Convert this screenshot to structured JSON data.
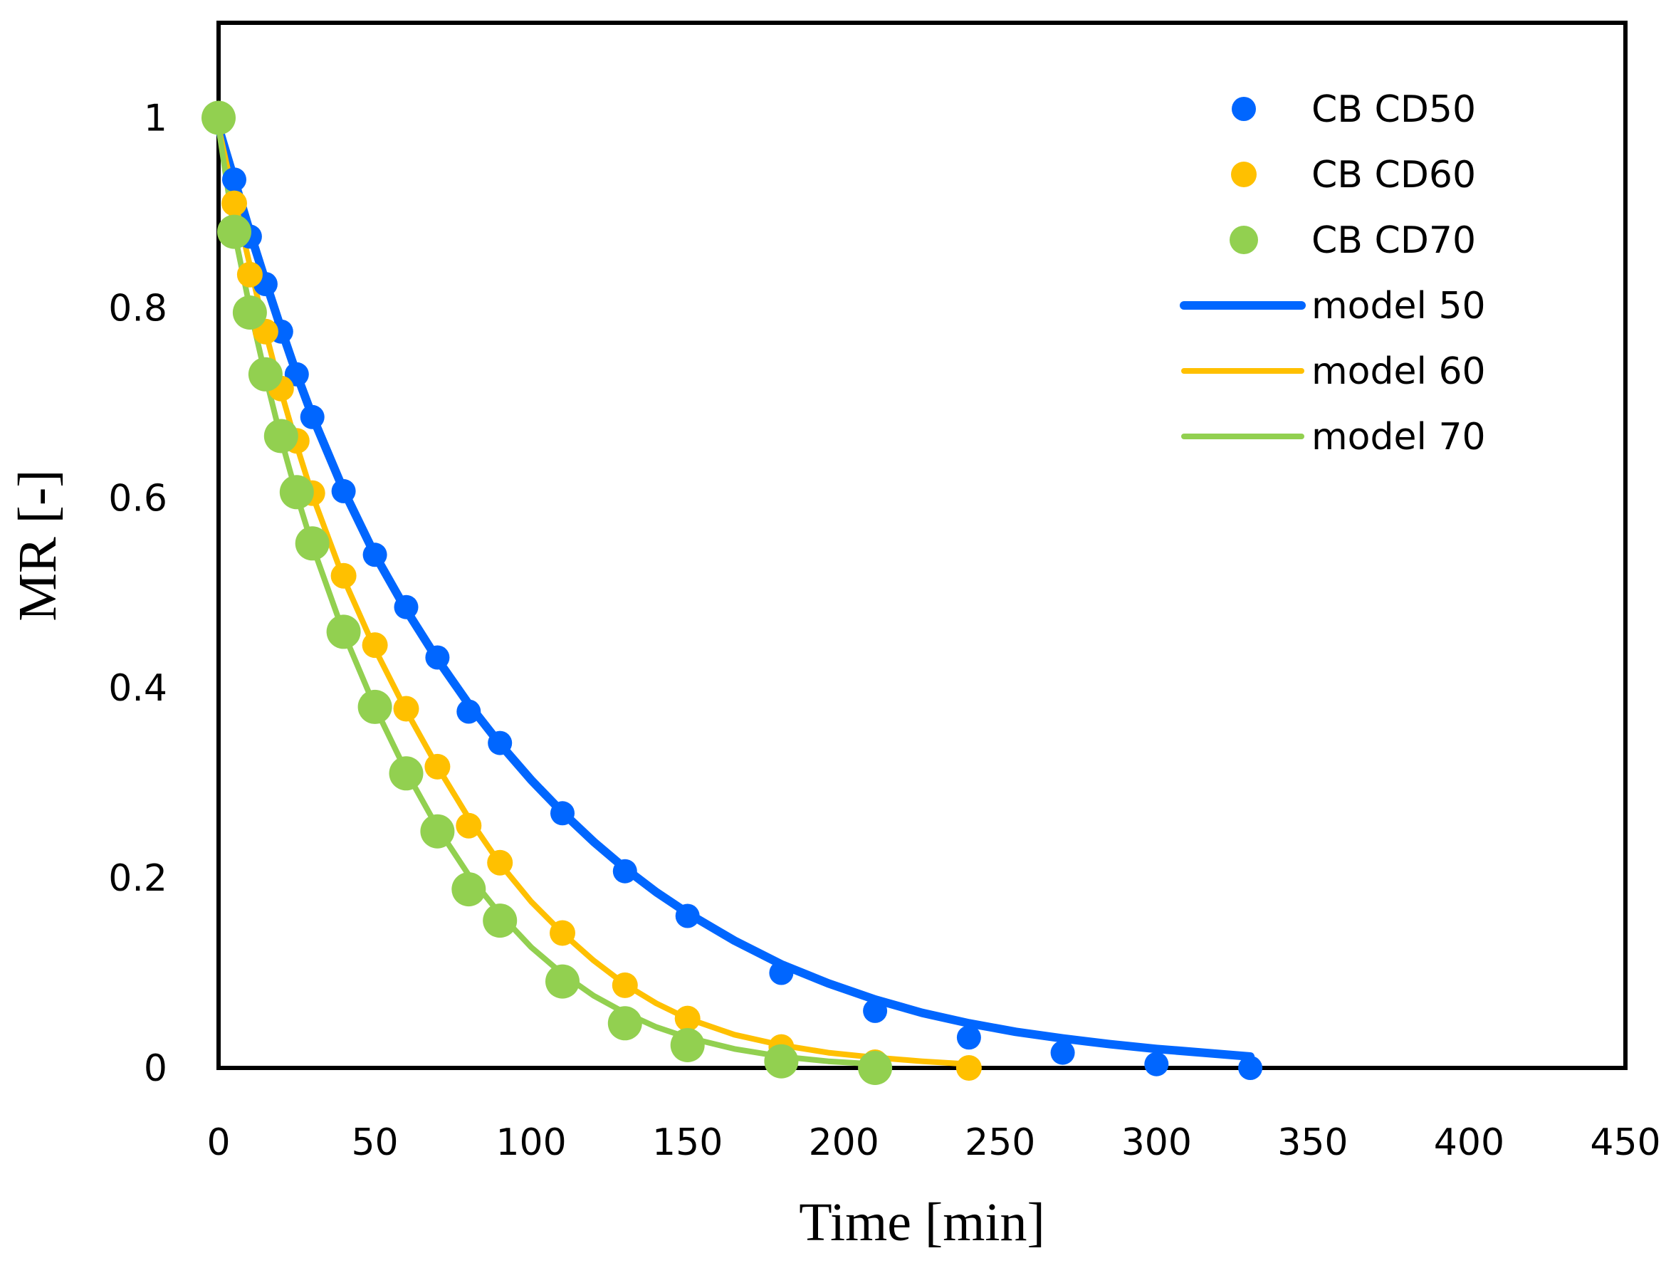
{
  "chart_data": {
    "type": "scatter",
    "title": "",
    "xlabel": "Time [min]",
    "ylabel": "MR [-]",
    "xlim": [
      0,
      450
    ],
    "ylim": [
      0,
      1.1
    ],
    "xticks": [
      0,
      50,
      100,
      150,
      200,
      250,
      300,
      350,
      400,
      450
    ],
    "yticks": [
      0,
      0.2,
      0.4,
      0.6,
      0.8,
      1
    ],
    "xtick_labels": [
      "0",
      "50",
      "100",
      "150",
      "200",
      "250",
      "300",
      "350",
      "400",
      "450"
    ],
    "ytick_labels": [
      "0",
      "0.2",
      "0.4",
      "0.6",
      "0.8",
      "1"
    ],
    "grid": false,
    "legend_position": "top-right",
    "series": [
      {
        "name": "CB CD50",
        "kind": "marker",
        "color": "#0066ff",
        "x": [
          0,
          5,
          10,
          15,
          20,
          25,
          30,
          40,
          50,
          60,
          70,
          80,
          90,
          110,
          130,
          150,
          180,
          210,
          240,
          270,
          300,
          330
        ],
        "y": [
          1.0,
          0.935,
          0.875,
          0.825,
          0.775,
          0.73,
          0.685,
          0.607,
          0.54,
          0.485,
          0.432,
          0.375,
          0.342,
          0.268,
          0.207,
          0.16,
          0.1,
          0.06,
          0.032,
          0.016,
          0.004,
          0.0
        ]
      },
      {
        "name": "CB CD60",
        "kind": "marker",
        "color": "#ffc000",
        "x": [
          0,
          5,
          10,
          15,
          20,
          25,
          30,
          40,
          50,
          60,
          70,
          80,
          90,
          110,
          130,
          150,
          180,
          210,
          240
        ],
        "y": [
          1.0,
          0.91,
          0.835,
          0.775,
          0.715,
          0.66,
          0.605,
          0.518,
          0.445,
          0.378,
          0.317,
          0.255,
          0.216,
          0.142,
          0.087,
          0.052,
          0.022,
          0.006,
          0.0
        ]
      },
      {
        "name": "CB CD70",
        "kind": "marker",
        "color": "#92d050",
        "x": [
          0,
          5,
          10,
          15,
          20,
          25,
          30,
          40,
          50,
          60,
          70,
          80,
          90,
          110,
          130,
          150,
          180,
          210
        ],
        "y": [
          1.0,
          0.88,
          0.795,
          0.73,
          0.665,
          0.606,
          0.552,
          0.459,
          0.38,
          0.31,
          0.249,
          0.188,
          0.155,
          0.091,
          0.047,
          0.024,
          0.007,
          0.0
        ]
      },
      {
        "name": "model 50",
        "kind": "line",
        "color": "#0066ff",
        "x": [
          0,
          5,
          10,
          15,
          20,
          25,
          30,
          40,
          50,
          60,
          70,
          80,
          90,
          100,
          110,
          120,
          130,
          140,
          150,
          165,
          180,
          195,
          210,
          225,
          240,
          255,
          270,
          285,
          300,
          315,
          330
        ],
        "y": [
          0.99,
          0.935,
          0.88,
          0.828,
          0.778,
          0.73,
          0.686,
          0.608,
          0.54,
          0.482,
          0.43,
          0.383,
          0.341,
          0.303,
          0.269,
          0.238,
          0.21,
          0.185,
          0.163,
          0.134,
          0.109,
          0.089,
          0.072,
          0.058,
          0.047,
          0.038,
          0.031,
          0.025,
          0.02,
          0.016,
          0.012
        ]
      },
      {
        "name": "model 60",
        "kind": "line",
        "color": "#ffc000",
        "x": [
          0,
          5,
          10,
          15,
          20,
          25,
          30,
          40,
          50,
          60,
          70,
          80,
          90,
          100,
          110,
          120,
          130,
          140,
          150,
          165,
          180,
          195,
          210,
          225,
          240
        ],
        "y": [
          0.99,
          0.915,
          0.845,
          0.775,
          0.712,
          0.655,
          0.603,
          0.515,
          0.441,
          0.376,
          0.317,
          0.263,
          0.215,
          0.175,
          0.142,
          0.113,
          0.088,
          0.068,
          0.052,
          0.035,
          0.024,
          0.016,
          0.011,
          0.007,
          0.004
        ]
      },
      {
        "name": "model 70",
        "kind": "line",
        "color": "#92d050",
        "x": [
          0,
          5,
          10,
          15,
          20,
          25,
          30,
          40,
          50,
          60,
          70,
          80,
          90,
          100,
          110,
          120,
          130,
          140,
          150,
          165,
          180,
          195,
          210
        ],
        "y": [
          0.99,
          0.88,
          0.8,
          0.728,
          0.662,
          0.603,
          0.55,
          0.458,
          0.38,
          0.312,
          0.253,
          0.203,
          0.162,
          0.127,
          0.099,
          0.076,
          0.058,
          0.043,
          0.032,
          0.02,
          0.012,
          0.007,
          0.004
        ]
      }
    ]
  }
}
